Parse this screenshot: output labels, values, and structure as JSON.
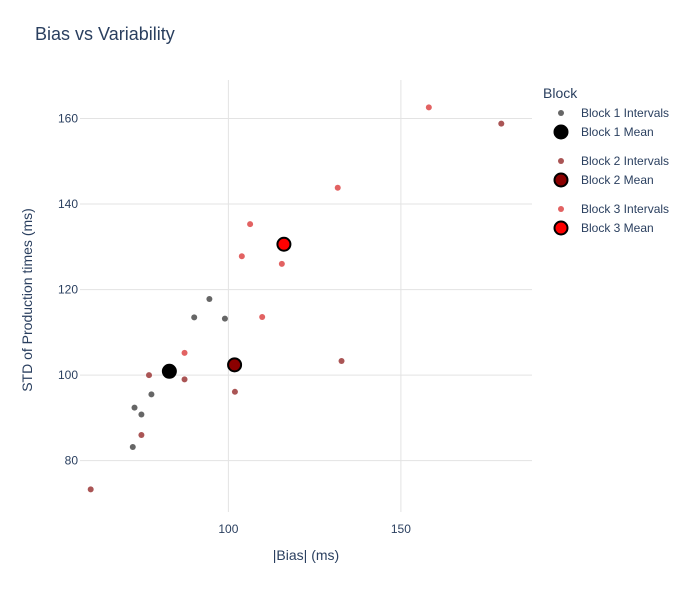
{
  "chart_data": {
    "type": "scatter",
    "title": "Bias vs Variability",
    "xlabel": "|Bias| (ms)",
    "ylabel": "STD of Production times (ms)",
    "xlim": [
      57,
      188
    ],
    "ylim": [
      68,
      169
    ],
    "x_ticks": [
      100,
      150
    ],
    "y_ticks": [
      80,
      100,
      120,
      140,
      160
    ],
    "grid": true,
    "legend": {
      "title": "Block",
      "placement": "right"
    },
    "series": [
      {
        "name": "Block 1 Intervals",
        "color": "#666666",
        "marker": "point",
        "points": [
          {
            "x": 72.3,
            "y": 83.2
          },
          {
            "x": 72.8,
            "y": 92.4
          },
          {
            "x": 74.8,
            "y": 90.8
          },
          {
            "x": 77.7,
            "y": 95.5
          },
          {
            "x": 90.1,
            "y": 113.5
          },
          {
            "x": 94.5,
            "y": 117.8
          },
          {
            "x": 99.0,
            "y": 113.2
          }
        ]
      },
      {
        "name": "Block 1 Mean",
        "color": "#000000",
        "marker": "mean",
        "points": [
          {
            "x": 82.9,
            "y": 100.9
          }
        ]
      },
      {
        "name": "Block 2 Intervals",
        "color": "#aa5555",
        "marker": "point",
        "points": [
          {
            "x": 60.1,
            "y": 73.3
          },
          {
            "x": 74.8,
            "y": 86.0
          },
          {
            "x": 77.0,
            "y": 100.0
          },
          {
            "x": 87.3,
            "y": 99.0
          },
          {
            "x": 101.9,
            "y": 96.1
          },
          {
            "x": 132.8,
            "y": 103.3
          },
          {
            "x": 179.1,
            "y": 158.8
          }
        ]
      },
      {
        "name": "Block 2 Mean",
        "color": "#8b0000",
        "marker": "mean",
        "points": [
          {
            "x": 101.8,
            "y": 102.4
          }
        ]
      },
      {
        "name": "Block 3 Intervals",
        "color": "#e26262",
        "marker": "point",
        "points": [
          {
            "x": 87.3,
            "y": 105.2
          },
          {
            "x": 103.9,
            "y": 127.8
          },
          {
            "x": 106.3,
            "y": 135.3
          },
          {
            "x": 109.8,
            "y": 113.6
          },
          {
            "x": 115.5,
            "y": 126.0
          },
          {
            "x": 131.7,
            "y": 143.8
          },
          {
            "x": 158.1,
            "y": 162.6
          }
        ]
      },
      {
        "name": "Block 3 Mean",
        "color": "#ff0000",
        "marker": "mean",
        "points": [
          {
            "x": 116.1,
            "y": 130.6
          }
        ]
      }
    ]
  }
}
